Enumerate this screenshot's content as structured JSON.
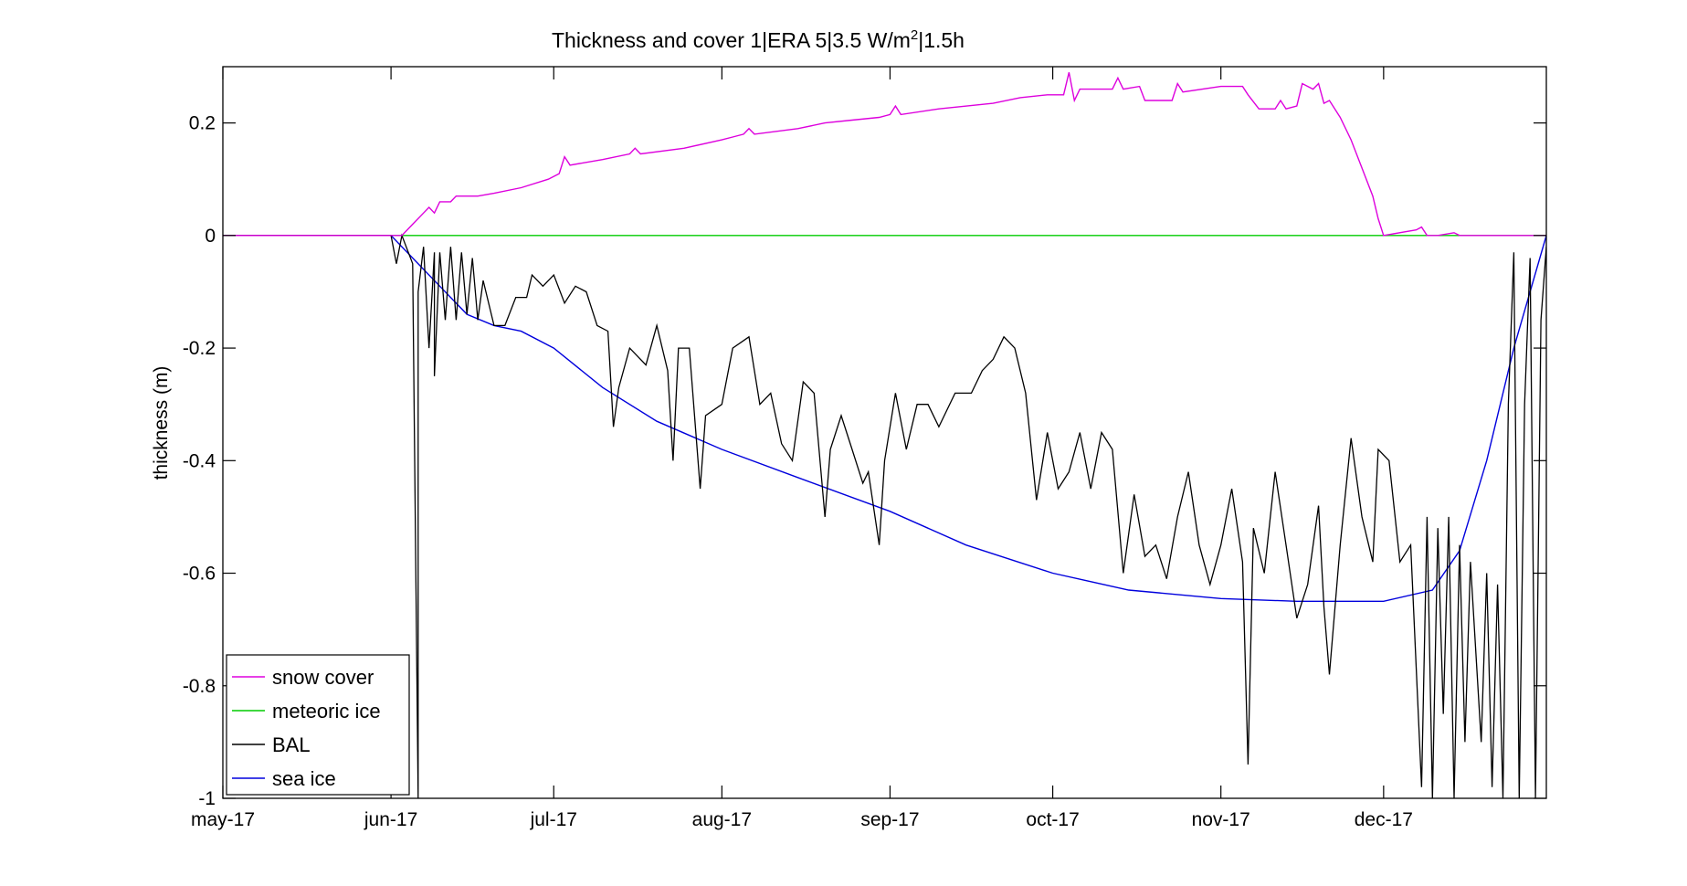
{
  "chart_data": {
    "type": "line",
    "title_main": "Thickness and cover 1|ERA 5|3.5 W/m",
    "title_sup": "2",
    "title_tail": "|1.5h",
    "xlabel": "",
    "ylabel": "thickness (m)",
    "xlim": [
      "2017-05-01",
      "2017-12-31"
    ],
    "ylim": [
      -1,
      0.3
    ],
    "yticks": [
      0.2,
      0,
      -0.2,
      -0.4,
      -0.6,
      -0.8,
      -1
    ],
    "ytick_labels": [
      "0.2",
      "0",
      "-0.2",
      "-0.4",
      "-0.6",
      "-0.8",
      "-1"
    ],
    "xticks": [
      {
        "date": "2017-05-01",
        "label": "may-17"
      },
      {
        "date": "2017-06-01",
        "label": "jun-17"
      },
      {
        "date": "2017-07-01",
        "label": "jul-17"
      },
      {
        "date": "2017-08-01",
        "label": "aug-17"
      },
      {
        "date": "2017-09-01",
        "label": "sep-17"
      },
      {
        "date": "2017-10-01",
        "label": "oct-17"
      },
      {
        "date": "2017-11-01",
        "label": "nov-17"
      },
      {
        "date": "2017-12-01",
        "label": "dec-17"
      }
    ],
    "grid": false,
    "legend_position": "bottom-left",
    "series": [
      {
        "name": "snow cover",
        "color": "#dd00dd",
        "points": [
          [
            "2017-05-01",
            0
          ],
          [
            "2017-06-03",
            0
          ],
          [
            "2017-06-05",
            0.02
          ],
          [
            "2017-06-07",
            0.04
          ],
          [
            "2017-06-08",
            0.05
          ],
          [
            "2017-06-09",
            0.04
          ],
          [
            "2017-06-10",
            0.06
          ],
          [
            "2017-06-12",
            0.06
          ],
          [
            "2017-06-13",
            0.07
          ],
          [
            "2017-06-17",
            0.07
          ],
          [
            "2017-06-20",
            0.075
          ],
          [
            "2017-06-25",
            0.085
          ],
          [
            "2017-06-30",
            0.1
          ],
          [
            "2017-07-02",
            0.11
          ],
          [
            "2017-07-03",
            0.14
          ],
          [
            "2017-07-04",
            0.125
          ],
          [
            "2017-07-10",
            0.135
          ],
          [
            "2017-07-15",
            0.145
          ],
          [
            "2017-07-16",
            0.155
          ],
          [
            "2017-07-17",
            0.145
          ],
          [
            "2017-07-25",
            0.155
          ],
          [
            "2017-08-01",
            0.17
          ],
          [
            "2017-08-03",
            0.175
          ],
          [
            "2017-08-05",
            0.18
          ],
          [
            "2017-08-06",
            0.19
          ],
          [
            "2017-08-07",
            0.18
          ],
          [
            "2017-08-15",
            0.19
          ],
          [
            "2017-08-20",
            0.2
          ],
          [
            "2017-08-25",
            0.205
          ],
          [
            "2017-08-30",
            0.21
          ],
          [
            "2017-09-01",
            0.215
          ],
          [
            "2017-09-02",
            0.23
          ],
          [
            "2017-09-03",
            0.215
          ],
          [
            "2017-09-10",
            0.225
          ],
          [
            "2017-09-20",
            0.235
          ],
          [
            "2017-09-25",
            0.245
          ],
          [
            "2017-09-30",
            0.25
          ],
          [
            "2017-10-03",
            0.25
          ],
          [
            "2017-10-04",
            0.29
          ],
          [
            "2017-10-05",
            0.24
          ],
          [
            "2017-10-06",
            0.26
          ],
          [
            "2017-10-12",
            0.26
          ],
          [
            "2017-10-13",
            0.28
          ],
          [
            "2017-10-14",
            0.26
          ],
          [
            "2017-10-17",
            0.265
          ],
          [
            "2017-10-18",
            0.24
          ],
          [
            "2017-10-23",
            0.24
          ],
          [
            "2017-10-24",
            0.27
          ],
          [
            "2017-10-25",
            0.255
          ],
          [
            "2017-11-01",
            0.265
          ],
          [
            "2017-11-05",
            0.265
          ],
          [
            "2017-11-06",
            0.25
          ],
          [
            "2017-11-08",
            0.225
          ],
          [
            "2017-11-11",
            0.225
          ],
          [
            "2017-11-12",
            0.24
          ],
          [
            "2017-11-13",
            0.225
          ],
          [
            "2017-11-15",
            0.23
          ],
          [
            "2017-11-16",
            0.27
          ],
          [
            "2017-11-18",
            0.26
          ],
          [
            "2017-11-19",
            0.27
          ],
          [
            "2017-11-20",
            0.235
          ],
          [
            "2017-11-21",
            0.24
          ],
          [
            "2017-11-22",
            0.225
          ],
          [
            "2017-11-23",
            0.21
          ],
          [
            "2017-11-25",
            0.17
          ],
          [
            "2017-11-27",
            0.12
          ],
          [
            "2017-11-29",
            0.07
          ],
          [
            "2017-11-30",
            0.03
          ],
          [
            "2017-12-01",
            0
          ],
          [
            "2017-12-07",
            0.01
          ],
          [
            "2017-12-08",
            0.015
          ],
          [
            "2017-12-09",
            0
          ],
          [
            "2017-12-11",
            0
          ],
          [
            "2017-12-14",
            0.005
          ],
          [
            "2017-12-15",
            0
          ],
          [
            "2017-12-31",
            0
          ]
        ]
      },
      {
        "name": "meteoric ice",
        "color": "#00cc00",
        "points": [
          [
            "2017-05-01",
            0
          ],
          [
            "2017-12-31",
            0
          ]
        ]
      },
      {
        "name": "BAL",
        "color": "#000000",
        "points": [
          [
            "2017-05-01",
            0
          ],
          [
            "2017-06-01",
            0
          ],
          [
            "2017-06-02",
            -0.05
          ],
          [
            "2017-06-03",
            0
          ],
          [
            "2017-06-05",
            -0.05
          ],
          [
            "2017-06-06",
            -1.0
          ],
          [
            "2017-06-06",
            -0.1
          ],
          [
            "2017-06-07",
            -0.02
          ],
          [
            "2017-06-08",
            -0.2
          ],
          [
            "2017-06-09",
            -0.03
          ],
          [
            "2017-06-09",
            -0.25
          ],
          [
            "2017-06-10",
            -0.03
          ],
          [
            "2017-06-11",
            -0.15
          ],
          [
            "2017-06-12",
            -0.02
          ],
          [
            "2017-06-13",
            -0.15
          ],
          [
            "2017-06-14",
            -0.03
          ],
          [
            "2017-06-15",
            -0.14
          ],
          [
            "2017-06-16",
            -0.04
          ],
          [
            "2017-06-17",
            -0.15
          ],
          [
            "2017-06-18",
            -0.08
          ],
          [
            "2017-06-20",
            -0.16
          ],
          [
            "2017-06-22",
            -0.16
          ],
          [
            "2017-06-24",
            -0.11
          ],
          [
            "2017-06-26",
            -0.11
          ],
          [
            "2017-06-27",
            -0.07
          ],
          [
            "2017-06-29",
            -0.09
          ],
          [
            "2017-07-01",
            -0.07
          ],
          [
            "2017-07-03",
            -0.12
          ],
          [
            "2017-07-05",
            -0.09
          ],
          [
            "2017-07-07",
            -0.1
          ],
          [
            "2017-07-09",
            -0.16
          ],
          [
            "2017-07-11",
            -0.17
          ],
          [
            "2017-07-12",
            -0.34
          ],
          [
            "2017-07-13",
            -0.27
          ],
          [
            "2017-07-15",
            -0.2
          ],
          [
            "2017-07-18",
            -0.23
          ],
          [
            "2017-07-20",
            -0.16
          ],
          [
            "2017-07-22",
            -0.24
          ],
          [
            "2017-07-23",
            -0.4
          ],
          [
            "2017-07-24",
            -0.2
          ],
          [
            "2017-07-26",
            -0.2
          ],
          [
            "2017-07-28",
            -0.45
          ],
          [
            "2017-07-29",
            -0.32
          ],
          [
            "2017-08-01",
            -0.3
          ],
          [
            "2017-08-03",
            -0.2
          ],
          [
            "2017-08-06",
            -0.18
          ],
          [
            "2017-08-08",
            -0.3
          ],
          [
            "2017-08-10",
            -0.28
          ],
          [
            "2017-08-12",
            -0.37
          ],
          [
            "2017-08-14",
            -0.4
          ],
          [
            "2017-08-16",
            -0.26
          ],
          [
            "2017-08-18",
            -0.28
          ],
          [
            "2017-08-20",
            -0.5
          ],
          [
            "2017-08-21",
            -0.38
          ],
          [
            "2017-08-23",
            -0.32
          ],
          [
            "2017-08-25",
            -0.38
          ],
          [
            "2017-08-27",
            -0.44
          ],
          [
            "2017-08-28",
            -0.42
          ],
          [
            "2017-08-30",
            -0.55
          ],
          [
            "2017-08-31",
            -0.4
          ],
          [
            "2017-09-02",
            -0.28
          ],
          [
            "2017-09-04",
            -0.38
          ],
          [
            "2017-09-06",
            -0.3
          ],
          [
            "2017-09-08",
            -0.3
          ],
          [
            "2017-09-10",
            -0.34
          ],
          [
            "2017-09-13",
            -0.28
          ],
          [
            "2017-09-16",
            -0.28
          ],
          [
            "2017-09-18",
            -0.24
          ],
          [
            "2017-09-20",
            -0.22
          ],
          [
            "2017-09-22",
            -0.18
          ],
          [
            "2017-09-24",
            -0.2
          ],
          [
            "2017-09-26",
            -0.28
          ],
          [
            "2017-09-28",
            -0.47
          ],
          [
            "2017-09-30",
            -0.35
          ],
          [
            "2017-10-02",
            -0.45
          ],
          [
            "2017-10-04",
            -0.42
          ],
          [
            "2017-10-06",
            -0.35
          ],
          [
            "2017-10-08",
            -0.45
          ],
          [
            "2017-10-10",
            -0.35
          ],
          [
            "2017-10-12",
            -0.38
          ],
          [
            "2017-10-14",
            -0.6
          ],
          [
            "2017-10-16",
            -0.46
          ],
          [
            "2017-10-18",
            -0.57
          ],
          [
            "2017-10-20",
            -0.55
          ],
          [
            "2017-10-22",
            -0.61
          ],
          [
            "2017-10-24",
            -0.5
          ],
          [
            "2017-10-26",
            -0.42
          ],
          [
            "2017-10-28",
            -0.55
          ],
          [
            "2017-10-30",
            -0.62
          ],
          [
            "2017-11-01",
            -0.55
          ],
          [
            "2017-11-03",
            -0.45
          ],
          [
            "2017-11-05",
            -0.58
          ],
          [
            "2017-11-06",
            -0.94
          ],
          [
            "2017-11-07",
            -0.52
          ],
          [
            "2017-11-09",
            -0.6
          ],
          [
            "2017-11-11",
            -0.42
          ],
          [
            "2017-11-13",
            -0.55
          ],
          [
            "2017-11-15",
            -0.68
          ],
          [
            "2017-11-17",
            -0.62
          ],
          [
            "2017-11-19",
            -0.48
          ],
          [
            "2017-11-20",
            -0.66
          ],
          [
            "2017-11-21",
            -0.78
          ],
          [
            "2017-11-23",
            -0.55
          ],
          [
            "2017-11-25",
            -0.36
          ],
          [
            "2017-11-27",
            -0.5
          ],
          [
            "2017-11-29",
            -0.58
          ],
          [
            "2017-11-30",
            -0.38
          ],
          [
            "2017-12-02",
            -0.4
          ],
          [
            "2017-12-04",
            -0.58
          ],
          [
            "2017-12-06",
            -0.55
          ],
          [
            "2017-12-08",
            -0.98
          ],
          [
            "2017-12-09",
            -0.5
          ],
          [
            "2017-12-10",
            -1.0
          ],
          [
            "2017-12-11",
            -0.52
          ],
          [
            "2017-12-12",
            -0.85
          ],
          [
            "2017-12-13",
            -0.5
          ],
          [
            "2017-12-14",
            -1.0
          ],
          [
            "2017-12-15",
            -0.55
          ],
          [
            "2017-12-16",
            -0.9
          ],
          [
            "2017-12-17",
            -0.58
          ],
          [
            "2017-12-19",
            -0.9
          ],
          [
            "2017-12-20",
            -0.6
          ],
          [
            "2017-12-21",
            -0.98
          ],
          [
            "2017-12-22",
            -0.62
          ],
          [
            "2017-12-23",
            -1.0
          ],
          [
            "2017-12-24",
            -0.3
          ],
          [
            "2017-12-25",
            -0.03
          ],
          [
            "2017-12-26",
            -1.0
          ],
          [
            "2017-12-27",
            -0.3
          ],
          [
            "2017-12-28",
            -0.04
          ],
          [
            "2017-12-29",
            -1.0
          ],
          [
            "2017-12-30",
            -0.15
          ],
          [
            "2017-12-31",
            -0.02
          ]
        ]
      },
      {
        "name": "sea ice",
        "color": "#0000dd",
        "points": [
          [
            "2017-05-01",
            0
          ],
          [
            "2017-06-01",
            0
          ],
          [
            "2017-06-05",
            -0.04
          ],
          [
            "2017-06-10",
            -0.09
          ],
          [
            "2017-06-15",
            -0.14
          ],
          [
            "2017-06-20",
            -0.16
          ],
          [
            "2017-06-25",
            -0.17
          ],
          [
            "2017-07-01",
            -0.2
          ],
          [
            "2017-07-10",
            -0.27
          ],
          [
            "2017-07-20",
            -0.33
          ],
          [
            "2017-08-01",
            -0.38
          ],
          [
            "2017-08-15",
            -0.43
          ],
          [
            "2017-09-01",
            -0.49
          ],
          [
            "2017-09-15",
            -0.55
          ],
          [
            "2017-10-01",
            -0.6
          ],
          [
            "2017-10-15",
            -0.63
          ],
          [
            "2017-11-01",
            -0.645
          ],
          [
            "2017-11-15",
            -0.65
          ],
          [
            "2017-12-01",
            -0.65
          ],
          [
            "2017-12-10",
            -0.63
          ],
          [
            "2017-12-15",
            -0.56
          ],
          [
            "2017-12-20",
            -0.4
          ],
          [
            "2017-12-25",
            -0.2
          ],
          [
            "2017-12-31",
            0
          ]
        ]
      }
    ]
  }
}
